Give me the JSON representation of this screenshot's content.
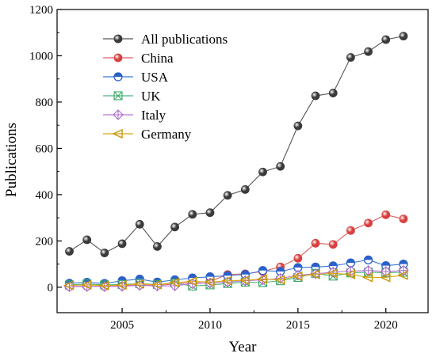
{
  "chart_data": {
    "type": "line",
    "title": "",
    "xlabel": "Year",
    "ylabel": "Publications",
    "xlim": [
      2001.3,
      2022.4
    ],
    "ylim": [
      -110,
      1200
    ],
    "xticks": [
      2005,
      2010,
      2015,
      2020
    ],
    "yticks": [
      0,
      200,
      400,
      600,
      800,
      1000,
      1200
    ],
    "grid": false,
    "legend_position": "top-left",
    "x": [
      2002,
      2003,
      2004,
      2005,
      2006,
      2007,
      2008,
      2009,
      2010,
      2011,
      2012,
      2013,
      2014,
      2015,
      2016,
      2017,
      2018,
      2019,
      2020,
      2021
    ],
    "series": [
      {
        "name": "All publications",
        "marker": "sphere",
        "line_color": "#555555",
        "fill_color": "#3a3a3a",
        "values": [
          155,
          205,
          148,
          188,
          272,
          176,
          260,
          315,
          322,
          397,
          422,
          498,
          522,
          697,
          827,
          839,
          993,
          1018,
          1070,
          1085
        ]
      },
      {
        "name": "China",
        "marker": "sphere",
        "line_color": "#e06060",
        "fill_color": "#d84040",
        "values": [
          3,
          4,
          3,
          6,
          10,
          8,
          14,
          20,
          25,
          55,
          58,
          68,
          88,
          125,
          190,
          185,
          245,
          277,
          313,
          295
        ]
      },
      {
        "name": "USA",
        "marker": "half-circle",
        "line_color": "#3a78d8",
        "fill_color": "#2a60c8",
        "values": [
          17,
          21,
          16,
          28,
          35,
          22,
          32,
          40,
          45,
          50,
          55,
          72,
          68,
          85,
          87,
          92,
          105,
          118,
          93,
          100
        ]
      },
      {
        "name": "UK",
        "marker": "x-square",
        "line_color": "#4cb87a",
        "fill_color": "#3aa868",
        "values": [
          10,
          14,
          10,
          12,
          15,
          12,
          18,
          5,
          10,
          16,
          22,
          20,
          28,
          42,
          60,
          48,
          62,
          65,
          62,
          65
        ]
      },
      {
        "name": "Italy",
        "marker": "diamond-plus",
        "line_color": "#b878d8",
        "fill_color": "#a868c8",
        "values": [
          2,
          3,
          3,
          4,
          8,
          5,
          6,
          15,
          18,
          22,
          28,
          32,
          38,
          52,
          58,
          65,
          70,
          72,
          68,
          72
        ]
      },
      {
        "name": "Germany",
        "marker": "triangle-left",
        "line_color": "#d8a818",
        "fill_color": "#c89808",
        "values": [
          8,
          10,
          7,
          9,
          14,
          11,
          20,
          25,
          22,
          28,
          30,
          35,
          32,
          48,
          55,
          60,
          55,
          42,
          42,
          52
        ]
      }
    ]
  }
}
